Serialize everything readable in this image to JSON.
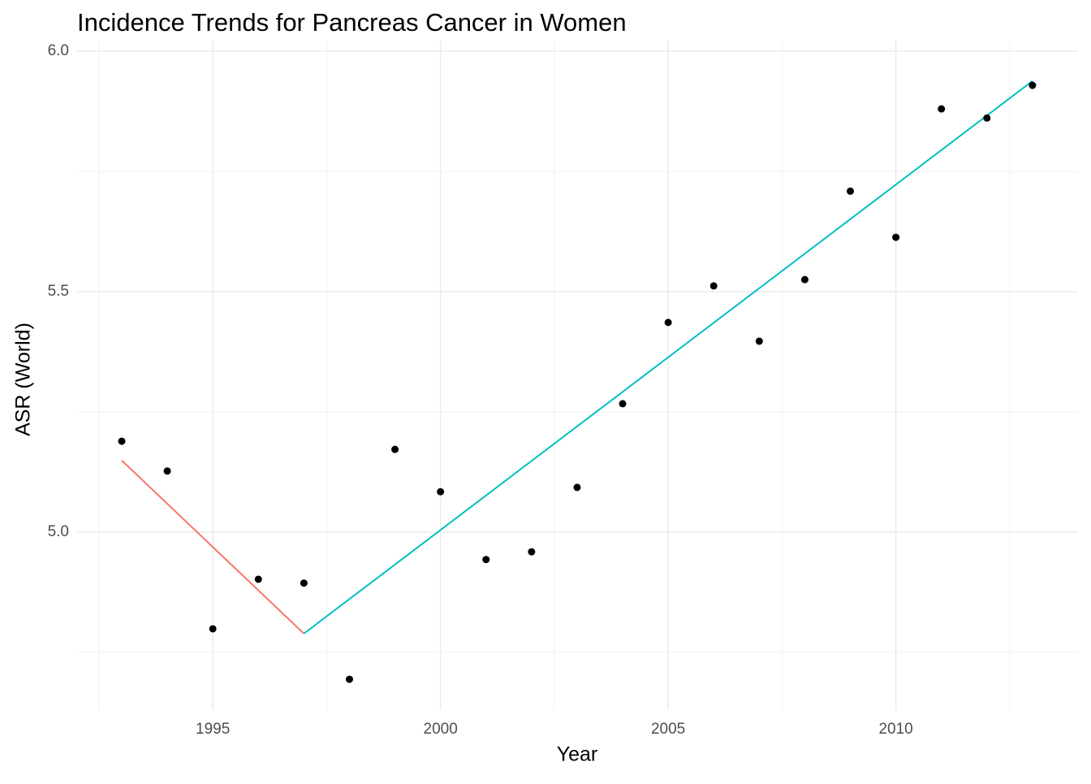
{
  "chart_data": {
    "type": "scatter",
    "title": "Incidence Trends for Pancreas Cancer in Women",
    "x_label": "Year",
    "y_label": "ASR (World)",
    "xlim": [
      1992.02,
      2014.0
    ],
    "ylim": [
      4.63,
      6.0
    ],
    "xticks": [
      1995,
      2000,
      2005,
      2010
    ],
    "yticks": [
      {
        "value": 5.0,
        "label": "5.0"
      },
      {
        "value": 5.5,
        "label": "5.5"
      },
      {
        "value": 6.0,
        "label": "6.0"
      }
    ],
    "x_minor_ticks": [
      1992.5,
      1997.5,
      2002.5,
      2007.5,
      2012.5
    ],
    "y_minor_ticks": [
      4.75,
      5.25,
      5.75
    ],
    "grid": true,
    "points": {
      "color": "#000000",
      "x": [
        1993,
        1994,
        1995,
        1996,
        1997,
        1998,
        1999,
        2000,
        2001,
        2002,
        2003,
        2004,
        2005,
        2006,
        2007,
        2008,
        2009,
        2010,
        2011,
        2012,
        2013
      ],
      "y": [
        5.189,
        5.127,
        4.799,
        4.902,
        4.894,
        4.694,
        5.172,
        5.084,
        4.943,
        4.959,
        5.093,
        5.267,
        5.436,
        5.512,
        5.397,
        5.525,
        5.709,
        5.613,
        5.88,
        5.861,
        5.929
      ]
    },
    "segments": [
      {
        "color": "#F8766D",
        "x": [
          1993,
          1997
        ],
        "y": [
          5.149,
          4.789
        ]
      },
      {
        "color": "#00BFC4",
        "x": [
          1997,
          2013
        ],
        "y": [
          4.789,
          5.938
        ]
      }
    ]
  }
}
